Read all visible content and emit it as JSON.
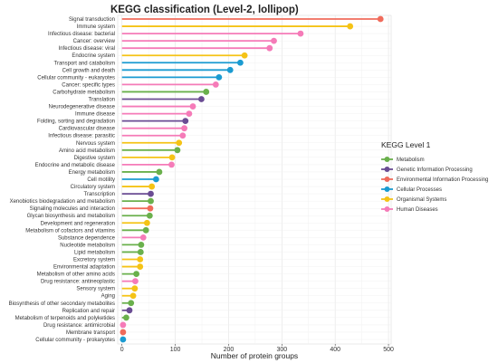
{
  "chart_data": {
    "type": "lollipop",
    "title": "KEGG classification (Level-2, lollipop)",
    "xlabel": "Number of protein groups",
    "ylabel": "",
    "xlim": [
      -8,
      505
    ],
    "xticks": [
      0,
      100,
      200,
      300,
      400,
      500
    ],
    "grid": true,
    "legend": {
      "title": "KEGG Level 1",
      "placement": "right",
      "entries": [
        {
          "name": "Metabolism",
          "color": "#6ab04c"
        },
        {
          "name": "Genetic Information Processing",
          "color": "#6a4c93"
        },
        {
          "name": "Environmental Information Processing",
          "color": "#f06b5b"
        },
        {
          "name": "Cellular Processes",
          "color": "#1b9bd1"
        },
        {
          "name": "Organismal Systems",
          "color": "#f5c316"
        },
        {
          "name": "Human Diseases",
          "color": "#f57bb8"
        }
      ]
    },
    "categories": [
      "Signal transduction",
      "Immune system",
      "Infectious disease: bacterial",
      "Cancer: overview",
      "Infectious disease: viral",
      "Endocrine system",
      "Transport and catabolism",
      "Cell growth and death",
      "Cellular community - eukaryotes",
      "Cancer: specific types",
      "Carbohydrate metabolism",
      "Translation",
      "Neurodegenerative disease",
      "Immune disease",
      "Folding, sorting and degradation",
      "Cardiovascular disease",
      "Infectious disease: parasitic",
      "Nervous system",
      "Amino acid metabolism",
      "Digestive system",
      "Endocrine and metabolic disease",
      "Energy metabolism",
      "Cell motility",
      "Circulatory system",
      "Transcription",
      "Xenobiotics biodegradation and metabolism",
      "Signaling molecules and interaction",
      "Glycan biosynthesis and metabolism",
      "Development and regeneration",
      "Metabolism of cofactors and vitamins",
      "Substance dependence",
      "Nucleotide metabolism",
      "Lipid metabolism",
      "Excretory system",
      "Environmental adaptation",
      "Metabolism of other amino acids",
      "Drug resistance: antineoplastic",
      "Sensory system",
      "Aging",
      "Biosynthesis of other secondary metabolites",
      "Replication and repair",
      "Metabolism of terpenoids and polyketides",
      "Drug resistance: antimicrobial",
      "Membrane transport",
      "Cellular community - prokaryotes"
    ],
    "values": [
      485,
      428,
      335,
      285,
      277,
      230,
      222,
      203,
      182,
      176,
      158,
      149,
      133,
      126,
      119,
      117,
      114,
      107,
      104,
      94,
      93,
      70,
      64,
      56,
      54,
      54,
      53,
      52,
      47,
      45,
      40,
      36,
      35,
      34,
      34,
      27,
      25,
      24,
      21,
      17,
      14,
      8,
      2,
      2,
      2
    ],
    "groups": [
      "Environmental Information Processing",
      "Organismal Systems",
      "Human Diseases",
      "Human Diseases",
      "Human Diseases",
      "Organismal Systems",
      "Cellular Processes",
      "Cellular Processes",
      "Cellular Processes",
      "Human Diseases",
      "Metabolism",
      "Genetic Information Processing",
      "Human Diseases",
      "Human Diseases",
      "Genetic Information Processing",
      "Human Diseases",
      "Human Diseases",
      "Organismal Systems",
      "Metabolism",
      "Organismal Systems",
      "Human Diseases",
      "Metabolism",
      "Cellular Processes",
      "Organismal Systems",
      "Genetic Information Processing",
      "Metabolism",
      "Environmental Information Processing",
      "Metabolism",
      "Organismal Systems",
      "Metabolism",
      "Human Diseases",
      "Metabolism",
      "Metabolism",
      "Organismal Systems",
      "Organismal Systems",
      "Metabolism",
      "Human Diseases",
      "Organismal Systems",
      "Organismal Systems",
      "Metabolism",
      "Genetic Information Processing",
      "Metabolism",
      "Human Diseases",
      "Environmental Information Processing",
      "Cellular Processes"
    ]
  }
}
